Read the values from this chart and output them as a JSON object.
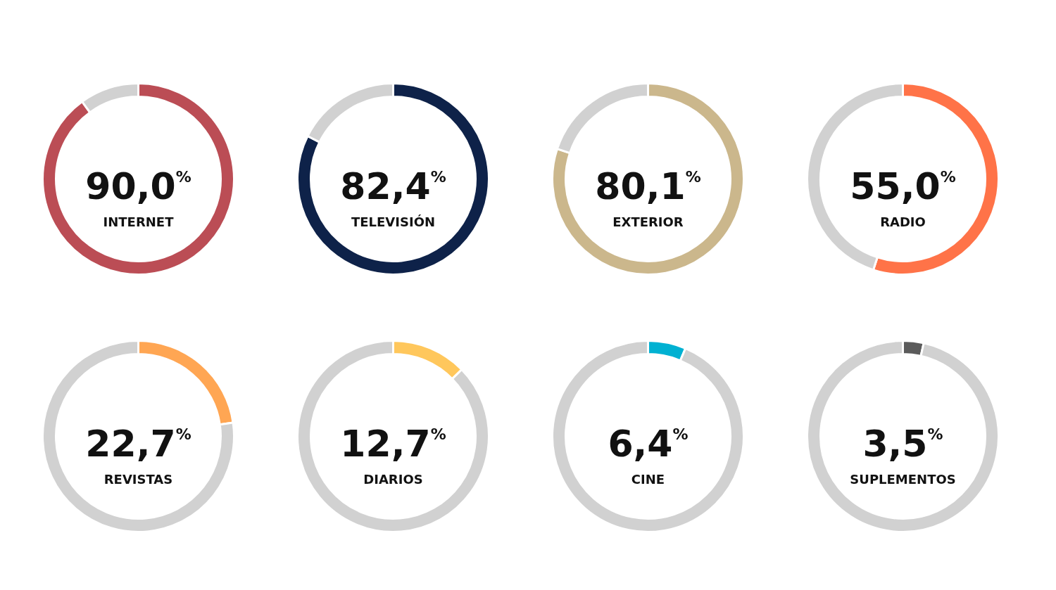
{
  "chart_data": [
    {
      "type": "donut",
      "title": "INTERNET",
      "categories": [
        null,
        null
      ],
      "values": [
        90.0,
        10.0
      ],
      "colors": [
        "#bb4d55",
        "#d1d1d1"
      ],
      "annotations": [
        "90,0$^{%}$"
      ]
    },
    {
      "type": "donut",
      "title": "TELEVISIÓN",
      "categories": [
        null,
        null
      ],
      "values": [
        82.4,
        17.6
      ],
      "colors": [
        "#0e2249",
        "#d1d1d1"
      ],
      "annotations": [
        "82,4$^{%}$"
      ]
    },
    {
      "type": "donut",
      "title": "EXTERIOR",
      "categories": [
        null,
        null
      ],
      "values": [
        80.1,
        19.9
      ],
      "colors": [
        "#cbb78c",
        "#d1d1d1"
      ],
      "annotations": [
        "80,1$^{%}$"
      ]
    },
    {
      "type": "donut",
      "title": "RADIO",
      "categories": [
        null,
        null
      ],
      "values": [
        55.0,
        45.0
      ],
      "colors": [
        "#ff7348",
        "#d1d1d1"
      ],
      "annotations": [
        "55,0$^{%}$"
      ]
    },
    {
      "type": "donut",
      "title": "REVISTAS",
      "categories": [
        null,
        null
      ],
      "values": [
        22.7,
        77.3
      ],
      "colors": [
        "#ffa653",
        "#d1d1d1"
      ],
      "annotations": [
        "22,7$^{%}$"
      ]
    },
    {
      "type": "donut",
      "title": "DIARIOS",
      "categories": [
        null,
        null
      ],
      "values": [
        12.7,
        87.3
      ],
      "colors": [
        "#ffc75c",
        "#d1d1d1"
      ],
      "annotations": [
        "12,7$^{%}$"
      ]
    },
    {
      "type": "donut",
      "title": "CINE",
      "categories": [
        null,
        null
      ],
      "values": [
        6.4,
        93.6
      ],
      "colors": [
        "#00b1d2",
        "#d1d1d1"
      ],
      "annotations": [
        "6,4$^{%}$"
      ]
    },
    {
      "type": "donut",
      "title": "SUPLEMENTOS",
      "categories": [
        null,
        null
      ],
      "values": [
        3.5,
        96.5
      ],
      "colors": [
        "#5b5b5b",
        "#d1d1d1"
      ],
      "annotations": [
        "3,5$^{%}$"
      ]
    }
  ]
}
